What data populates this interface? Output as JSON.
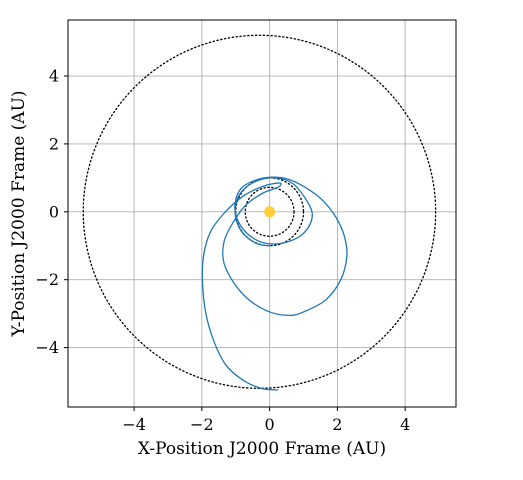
{
  "chart_data": {
    "type": "line",
    "xlabel": "X-Position J2000 Frame (AU)",
    "ylabel": "Y-Position J2000 Frame (AU)",
    "xlim": [
      -5.95,
      5.5
    ],
    "ylim": [
      -5.75,
      5.65
    ],
    "xticks": [
      -4,
      -2,
      0,
      2,
      4
    ],
    "yticks": [
      -4,
      -2,
      0,
      2,
      4
    ],
    "xtick_labels": [
      "−4",
      "−2",
      "0",
      "2",
      "4"
    ],
    "ytick_labels": [
      "−4",
      "−2",
      "0",
      "2",
      "4"
    ],
    "grid": true,
    "sun": {
      "x": 0,
      "y": 0,
      "color": "#fccf3a"
    },
    "orbit_color": "#000000",
    "trajectory_color": "#1f77b4",
    "orbits": [
      {
        "center": [
          0,
          0
        ],
        "radius": 1.0
      },
      {
        "center": [
          0,
          0
        ],
        "radius": 0.72
      },
      {
        "center": [
          -0.3,
          0
        ],
        "radius": 5.2
      }
    ],
    "series": [
      {
        "points": [
          [
            0,
            -1.0
          ],
          [
            -0.42,
            -0.92
          ],
          [
            -0.85,
            -0.55
          ],
          [
            -1.02,
            0
          ],
          [
            -0.86,
            0.55
          ],
          [
            -0.4,
            0.9
          ],
          [
            0.2,
            1.0
          ],
          [
            0.7,
            0.82
          ],
          [
            1.05,
            0.4
          ],
          [
            1.25,
            0
          ],
          [
            1.2,
            -0.35
          ],
          [
            0.95,
            -0.68
          ],
          [
            0.55,
            -0.88
          ],
          [
            0.1,
            -0.95
          ],
          [
            -0.35,
            -0.85
          ],
          [
            -0.75,
            -0.55
          ],
          [
            -0.98,
            -0.15
          ],
          [
            -1.02,
            0.25
          ],
          [
            -0.85,
            0.68
          ],
          [
            -0.45,
            0.92
          ],
          [
            0.05,
            1.02
          ],
          [
            0.55,
            0.96
          ],
          [
            1.05,
            0.72
          ],
          [
            1.55,
            0.35
          ],
          [
            1.95,
            -0.15
          ],
          [
            2.2,
            -0.7
          ],
          [
            2.28,
            -1.3
          ],
          [
            2.1,
            -2.0
          ],
          [
            1.65,
            -2.6
          ],
          [
            1.0,
            -2.95
          ],
          [
            0.6,
            -3.05
          ],
          [
            0.0,
            -2.95
          ],
          [
            -0.6,
            -2.6
          ],
          [
            -1.05,
            -2.1
          ],
          [
            -1.35,
            -1.5
          ],
          [
            -1.35,
            -0.9
          ],
          [
            -1.1,
            -0.35
          ],
          [
            -0.7,
            0.2
          ],
          [
            -0.2,
            0.55
          ],
          [
            0.25,
            0.72
          ],
          [
            0.3,
            0.85
          ],
          [
            -0.2,
            0.75
          ],
          [
            -0.8,
            0.45
          ],
          [
            -1.35,
            -0.05
          ],
          [
            -1.75,
            -0.6
          ],
          [
            -1.95,
            -1.3
          ],
          [
            -1.98,
            -2.1
          ],
          [
            -1.88,
            -3.0
          ],
          [
            -1.65,
            -3.8
          ],
          [
            -1.3,
            -4.5
          ],
          [
            -0.8,
            -4.95
          ],
          [
            -0.25,
            -5.2
          ],
          [
            0.25,
            -5.25
          ]
        ]
      }
    ]
  }
}
